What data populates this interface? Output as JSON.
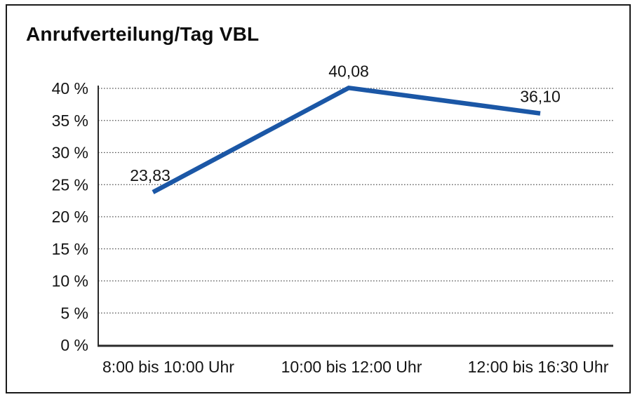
{
  "window": {
    "background_color": "#ffffff",
    "frame_border_color": "#1a1a1a"
  },
  "chart_data": {
    "type": "line",
    "title": "Anrufverteilung/Tag VBL",
    "categories": [
      "8:00 bis 10:00 Uhr",
      "10:00 bis 12:00 Uhr",
      "12:00 bis 16:30 Uhr"
    ],
    "values": [
      23.83,
      40.08,
      36.1
    ],
    "data_labels": [
      "23,83",
      "40,08",
      "36,10"
    ],
    "xlabel": "",
    "ylabel": "",
    "ylim": [
      0,
      40
    ],
    "ytick_step": 5,
    "ytick_labels": [
      "0 %",
      "5 %",
      "10 %",
      "15 %",
      "20 %",
      "25 %",
      "30 %",
      "35 %",
      "40 %"
    ],
    "grid": "horizontal-dotted",
    "legend": "none",
    "line_color": "#1b57a6",
    "axis_color": "#2a2a2a",
    "gridline_color": "#555555",
    "markers": "none"
  }
}
